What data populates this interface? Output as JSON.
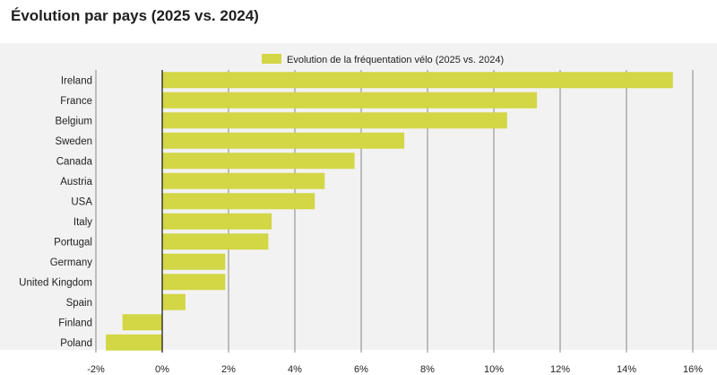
{
  "page": {
    "title": "Évolution par pays (2025 vs. 2024)"
  },
  "colors": {
    "bar": "#d3d645",
    "panel": "#f2f2f2",
    "grid": "#6b6b6b"
  },
  "chart_data": {
    "type": "bar",
    "orientation": "horizontal",
    "title": "Évolution par pays (2025 vs. 2024)",
    "legend": {
      "label": "Evolution de la fréquentation vélo (2025 vs. 2024)",
      "position": "top"
    },
    "categories": [
      "Ireland",
      "France",
      "Belgium",
      "Sweden",
      "Canada",
      "Austria",
      "USA",
      "Italy",
      "Portugal",
      "Germany",
      "United Kingdom",
      "Spain",
      "Finland",
      "Poland"
    ],
    "series": [
      {
        "name": "Evolution de la fréquentation vélo (2025 vs. 2024)",
        "values": [
          15.4,
          11.3,
          10.4,
          7.3,
          5.8,
          4.9,
          4.6,
          3.3,
          3.2,
          1.9,
          1.9,
          0.7,
          -1.2,
          -1.7
        ]
      }
    ],
    "xlim": [
      -2,
      16
    ],
    "xticks": [
      -2,
      0,
      2,
      4,
      6,
      8,
      10,
      12,
      14,
      16
    ],
    "xtick_labels": [
      "-2%",
      "0%",
      "2%",
      "4%",
      "6%",
      "8%",
      "10%",
      "12%",
      "14%",
      "16%"
    ],
    "grid": "vertical"
  }
}
